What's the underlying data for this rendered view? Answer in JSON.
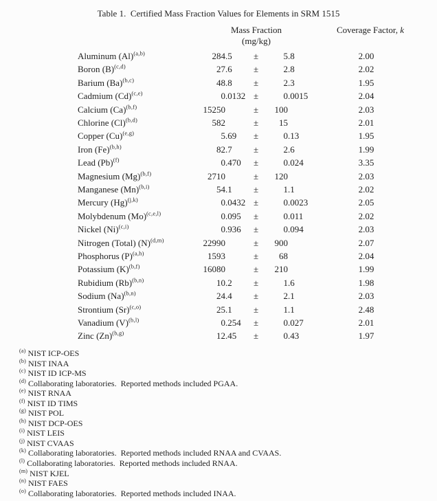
{
  "title": "Table 1.  Certified Mass Fraction Values for Elements in SRM 1515",
  "header": {
    "mass_fraction_label": "Mass Fraction",
    "mass_fraction_unit": "(mg/kg)",
    "coverage_factor_label": "Coverage Factor, ",
    "coverage_factor_symbol": "k"
  },
  "plus_minus": "±",
  "rows": [
    {
      "element": "Aluminum (Al)",
      "refs": "a,b",
      "value": "284.5",
      "uncertainty": "5.8",
      "k": "2.00"
    },
    {
      "element": "Boron (B)",
      "refs": "c,d",
      "value": "27.6",
      "uncertainty": "2.8",
      "k": "2.02"
    },
    {
      "element": "Barium (Ba)",
      "refs": "b,c",
      "value": "48.8",
      "uncertainty": "2.3",
      "k": "1.95"
    },
    {
      "element": "Cadmium (Cd)",
      "refs": "c,e",
      "value": "0.0132",
      "uncertainty": "0.0015",
      "k": "2.04"
    },
    {
      "element": "Calcium (Ca)",
      "refs": "b,f",
      "value": "15250",
      "uncertainty": "100",
      "k": "2.03"
    },
    {
      "element": "Chlorine (Cl)",
      "refs": "b,d",
      "value": "582",
      "uncertainty": "15",
      "k": "2.01"
    },
    {
      "element": "Copper (Cu)",
      "refs": "e,g",
      "value": "5.69",
      "uncertainty": "0.13",
      "k": "1.95"
    },
    {
      "element": "Iron (Fe)",
      "refs": "b,h",
      "value": "82.7",
      "uncertainty": "2.6",
      "k": "1.99"
    },
    {
      "element": "Lead (Pb)",
      "refs": "f",
      "value": "0.470",
      "uncertainty": "0.024",
      "k": "3.35"
    },
    {
      "element": "Magnesium (Mg)",
      "refs": "b,f",
      "value": "2710",
      "uncertainty": "120",
      "k": "2.03"
    },
    {
      "element": "Manganese (Mn)",
      "refs": "b,i",
      "value": "54.1",
      "uncertainty": "1.1",
      "k": "2.02"
    },
    {
      "element": "Mercury (Hg)",
      "refs": "j,k",
      "value": "0.0432",
      "uncertainty": "0.0023",
      "k": "2.05"
    },
    {
      "element": "Molybdenum (Mo)",
      "refs": "c,e,l",
      "value": "0.095",
      "uncertainty": "0.011",
      "k": "2.02"
    },
    {
      "element": "Nickel (Ni)",
      "refs": "c,i",
      "value": "0.936",
      "uncertainty": "0.094",
      "k": "2.03"
    },
    {
      "element": "Nitrogen (Total) (N)",
      "refs": "d,m",
      "value": "22990",
      "uncertainty": "900",
      "k": "2.07"
    },
    {
      "element": "Phosphorus (P)",
      "refs": "a,h",
      "value": "1593",
      "uncertainty": "68",
      "k": "2.04"
    },
    {
      "element": "Potassium (K)",
      "refs": "b,f",
      "value": "16080",
      "uncertainty": "210",
      "k": "1.99"
    },
    {
      "element": "Rubidium (Rb)",
      "refs": "b,n",
      "value": "10.2",
      "uncertainty": "1.6",
      "k": "1.98"
    },
    {
      "element": "Sodium (Na)",
      "refs": "b,n",
      "value": "24.4",
      "uncertainty": "2.1",
      "k": "2.03"
    },
    {
      "element": "Strontium (Sr)",
      "refs": "c,o",
      "value": "25.1",
      "uncertainty": "1.1",
      "k": "2.48"
    },
    {
      "element": "Vanadium (V)",
      "refs": "b,l",
      "value": "0.254",
      "uncertainty": "0.027",
      "k": "2.01"
    },
    {
      "element": "Zinc (Zn)",
      "refs": "b,g",
      "value": "12.45",
      "uncertainty": "0.43",
      "k": "1.97"
    }
  ],
  "footnotes": [
    {
      "marker": "a",
      "text": "NIST ICP-OES"
    },
    {
      "marker": "b",
      "text": "NIST INAA"
    },
    {
      "marker": "c",
      "text": "NIST ID ICP-MS"
    },
    {
      "marker": "d",
      "text": "Collaborating laboratories.  Reported methods included PGAA."
    },
    {
      "marker": "e",
      "text": "NIST RNAA"
    },
    {
      "marker": "f",
      "text": "NIST ID TIMS"
    },
    {
      "marker": "g",
      "text": "NIST POL"
    },
    {
      "marker": "h",
      "text": "NIST DCP-OES"
    },
    {
      "marker": "i",
      "text": "NIST LEIS"
    },
    {
      "marker": "j",
      "text": "NIST CVAAS"
    },
    {
      "marker": "k",
      "text": "Collaborating laboratories.  Reported methods included RNAA and CVAAS."
    },
    {
      "marker": "l",
      "text": "Collaborating laboratories.  Reported methods included RNAA."
    },
    {
      "marker": "m",
      "text": "NIST KJEL"
    },
    {
      "marker": "n",
      "text": "NIST FAES"
    },
    {
      "marker": "o",
      "text": "Collaborating laboratories.  Reported methods included INAA."
    }
  ],
  "colors": {
    "text": "#1f1f1f",
    "background": "#fcfcfc"
  }
}
